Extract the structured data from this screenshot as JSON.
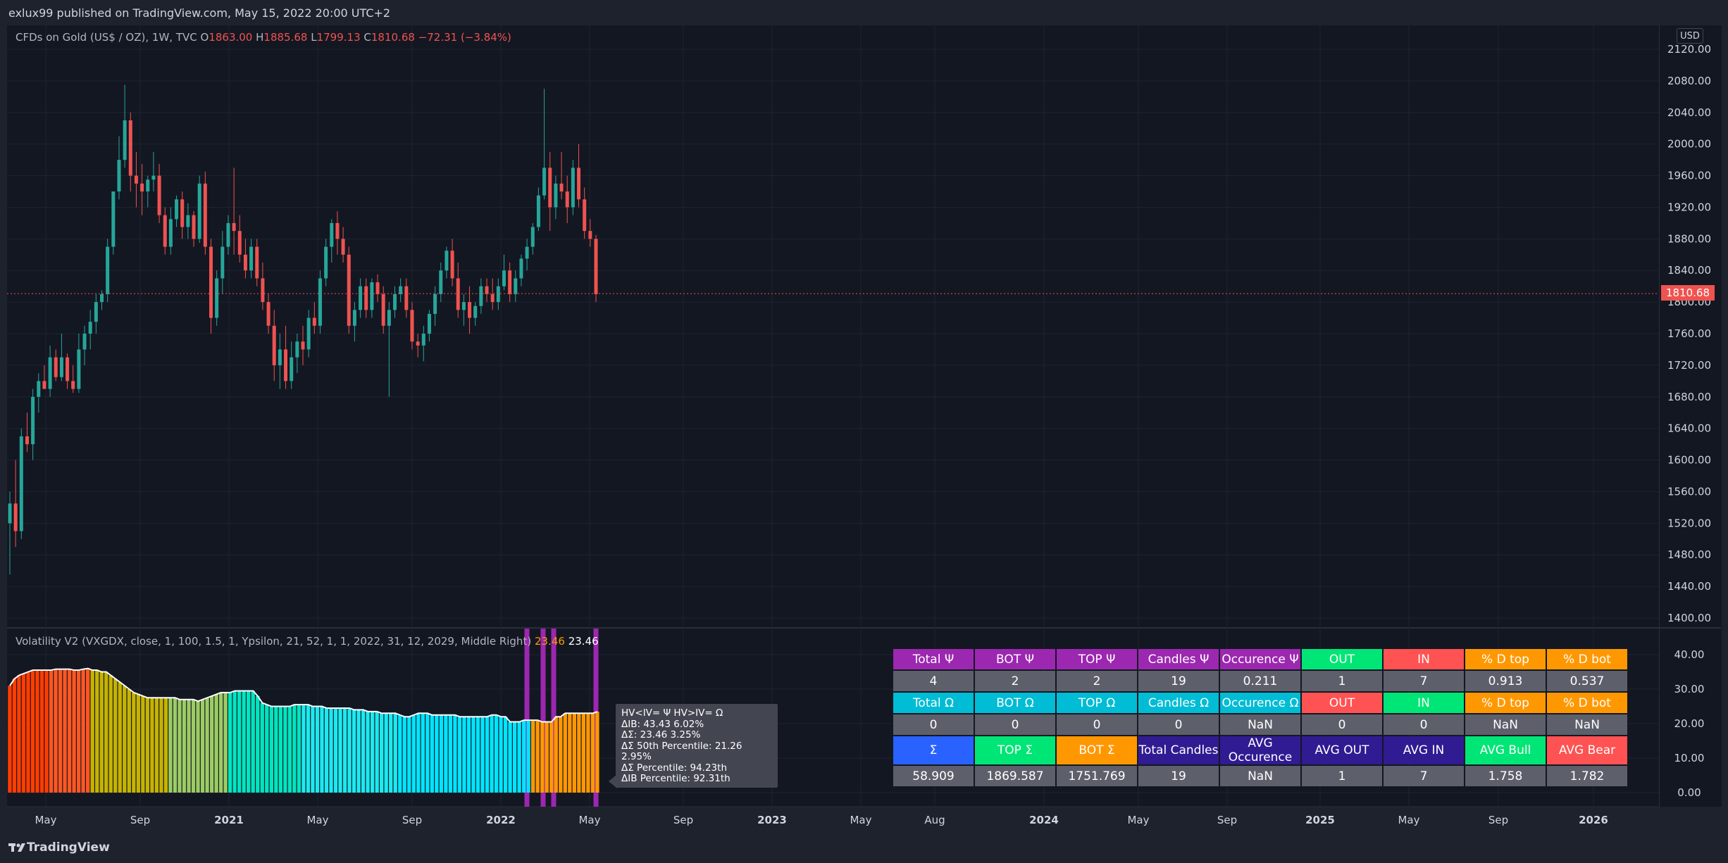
{
  "header": {
    "publish_text": "exlux99 published on TradingView.com, May 15, 2022 20:00 UTC+2"
  },
  "main_legend": {
    "symbol": "CFDs on Gold (US$ / OZ), 1W, TVC",
    "o_label": "O",
    "o_value": "1863.00",
    "h_label": "H",
    "h_value": "1885.68",
    "l_label": "L",
    "l_value": "1799.13",
    "c_label": "C",
    "c_value": "1810.68",
    "change": "−72.31 (−3.84%)"
  },
  "indicator_legend": {
    "name": "Volatility V2 (VXGDX, close, 1, 100, 1.5, 1, Ypsilon, 21, 52, 1, 1, 2022, 31, 12, 2029, Middle Right)",
    "value1": "23.46",
    "value2": "23.46"
  },
  "price_axis": {
    "currency": "USD",
    "last_price": "1810.68",
    "ticks": [
      "2120.00",
      "2080.00",
      "2040.00",
      "2000.00",
      "1960.00",
      "1920.00",
      "1880.00",
      "1840.00",
      "1800.00",
      "1760.00",
      "1720.00",
      "1680.00",
      "1640.00",
      "1600.00",
      "1560.00",
      "1520.00",
      "1480.00",
      "1440.00",
      "1400.00"
    ]
  },
  "indicator_axis": {
    "ticks": [
      "40.00",
      "30.00",
      "20.00",
      "10.00",
      "0.00"
    ]
  },
  "time_axis": {
    "labels": [
      "May",
      "Sep",
      "2021",
      "May",
      "Sep",
      "2022",
      "May",
      "Sep",
      "2023",
      "May",
      "Aug",
      "2024",
      "May",
      "Sep",
      "2025",
      "May",
      "Sep",
      "2026"
    ]
  },
  "tooltip": {
    "lines": [
      "HV<IV= Ψ  HV>IV= Ω",
      "ΔIB: 43.43  6.02%",
      "ΔΣ: 23.46  3.25%",
      "ΔΣ 50th Percentile: 21.26  2.95%",
      "ΔΣ Percentile: 94.23th",
      "ΔIB Percentile: 92.31th"
    ]
  },
  "stats_table": {
    "rows": [
      [
        {
          "t": "Total Ψ",
          "c": "#9c27b0"
        },
        {
          "t": "BOT Ψ",
          "c": "#9c27b0"
        },
        {
          "t": "TOP Ψ",
          "c": "#9c27b0"
        },
        {
          "t": "Candles Ψ",
          "c": "#9c27b0"
        },
        {
          "t": "Occurence Ψ",
          "c": "#9c27b0"
        },
        {
          "t": "OUT",
          "c": "#00e676"
        },
        {
          "t": "IN",
          "c": "#ff5252"
        },
        {
          "t": "% D top",
          "c": "#ff9800"
        },
        {
          "t": "% D bot",
          "c": "#ff9800"
        }
      ],
      [
        {
          "t": "4",
          "c": "#5d606b"
        },
        {
          "t": "2",
          "c": "#5d606b"
        },
        {
          "t": "2",
          "c": "#5d606b"
        },
        {
          "t": "19",
          "c": "#5d606b"
        },
        {
          "t": "0.211",
          "c": "#5d606b"
        },
        {
          "t": "1",
          "c": "#5d606b"
        },
        {
          "t": "7",
          "c": "#5d606b"
        },
        {
          "t": "0.913",
          "c": "#5d606b"
        },
        {
          "t": "0.537",
          "c": "#5d606b"
        }
      ],
      [
        {
          "t": "Total Ω",
          "c": "#00bcd4"
        },
        {
          "t": "BOT Ω",
          "c": "#00bcd4"
        },
        {
          "t": "TOP Ω",
          "c": "#00bcd4"
        },
        {
          "t": "Candles Ω",
          "c": "#00bcd4"
        },
        {
          "t": "Occurence Ω",
          "c": "#00bcd4"
        },
        {
          "t": "OUT",
          "c": "#ff5252"
        },
        {
          "t": "IN",
          "c": "#00e676"
        },
        {
          "t": "% D top",
          "c": "#ff9800"
        },
        {
          "t": "% D bot",
          "c": "#ff9800"
        }
      ],
      [
        {
          "t": "0",
          "c": "#5d606b"
        },
        {
          "t": "0",
          "c": "#5d606b"
        },
        {
          "t": "0",
          "c": "#5d606b"
        },
        {
          "t": "0",
          "c": "#5d606b"
        },
        {
          "t": "NaN",
          "c": "#5d606b"
        },
        {
          "t": "0",
          "c": "#5d606b"
        },
        {
          "t": "0",
          "c": "#5d606b"
        },
        {
          "t": "NaN",
          "c": "#5d606b"
        },
        {
          "t": "NaN",
          "c": "#5d606b"
        }
      ],
      [
        {
          "t": "Σ",
          "c": "#2962ff"
        },
        {
          "t": "TOP Σ",
          "c": "#00e676"
        },
        {
          "t": "BOT Σ",
          "c": "#ff9800"
        },
        {
          "t": "Total Candles",
          "c": "#311b92"
        },
        {
          "t": "AVG Occurence",
          "c": "#311b92"
        },
        {
          "t": "AVG OUT",
          "c": "#311b92"
        },
        {
          "t": "AVG IN",
          "c": "#311b92"
        },
        {
          "t": "AVG Bull",
          "c": "#00e676"
        },
        {
          "t": "AVG Bear",
          "c": "#ff5252"
        }
      ],
      [
        {
          "t": "58.909",
          "c": "#5d606b"
        },
        {
          "t": "1869.587",
          "c": "#5d606b"
        },
        {
          "t": "1751.769",
          "c": "#5d606b"
        },
        {
          "t": "19",
          "c": "#5d606b"
        },
        {
          "t": "NaN",
          "c": "#5d606b"
        },
        {
          "t": "1",
          "c": "#5d606b"
        },
        {
          "t": "7",
          "c": "#5d606b"
        },
        {
          "t": "1.758",
          "c": "#5d606b"
        },
        {
          "t": "1.782",
          "c": "#5d606b"
        }
      ]
    ]
  },
  "footer": {
    "brand": "TradingView",
    "logo": "tradingview-logo-icon"
  },
  "chart_data": [
    {
      "type": "candlestick",
      "title": "CFDs on Gold (US$ / OZ), 1W, TVC",
      "ylim": [
        1400,
        2130
      ],
      "x_range": [
        "2020-03",
        "2026-06"
      ],
      "last_price": 1810.68,
      "colors": {
        "up": "#26a69a",
        "down": "#ef5350"
      },
      "ohlc": [
        [
          1520,
          1560,
          1455,
          1545
        ],
        [
          1545,
          1600,
          1490,
          1510
        ],
        [
          1510,
          1640,
          1500,
          1630
        ],
        [
          1630,
          1660,
          1610,
          1620
        ],
        [
          1620,
          1690,
          1600,
          1680
        ],
        [
          1680,
          1710,
          1660,
          1700
        ],
        [
          1700,
          1720,
          1690,
          1690
        ],
        [
          1690,
          1745,
          1680,
          1730
        ],
        [
          1730,
          1740,
          1700,
          1705
        ],
        [
          1705,
          1760,
          1700,
          1730
        ],
        [
          1730,
          1735,
          1690,
          1700
        ],
        [
          1700,
          1720,
          1685,
          1690
        ],
        [
          1690,
          1760,
          1685,
          1740
        ],
        [
          1740,
          1770,
          1720,
          1760
        ],
        [
          1760,
          1790,
          1740,
          1775
        ],
        [
          1775,
          1810,
          1760,
          1800
        ],
        [
          1800,
          1815,
          1790,
          1810
        ],
        [
          1810,
          1880,
          1800,
          1870
        ],
        [
          1870,
          1940,
          1860,
          1940
        ],
        [
          1940,
          2010,
          1930,
          1980
        ],
        [
          1980,
          2075,
          1970,
          2030
        ],
        [
          2030,
          2040,
          1940,
          1960
        ],
        [
          1960,
          1990,
          1920,
          1950
        ],
        [
          1950,
          1975,
          1910,
          1940
        ],
        [
          1940,
          1960,
          1920,
          1955
        ],
        [
          1955,
          1990,
          1940,
          1960
        ],
        [
          1960,
          1975,
          1900,
          1910
        ],
        [
          1910,
          1920,
          1860,
          1870
        ],
        [
          1870,
          1920,
          1860,
          1905
        ],
        [
          1905,
          1935,
          1895,
          1930
        ],
        [
          1930,
          1940,
          1880,
          1895
        ],
        [
          1895,
          1925,
          1880,
          1910
        ],
        [
          1910,
          1915,
          1870,
          1880
        ],
        [
          1880,
          1960,
          1875,
          1950
        ],
        [
          1950,
          1965,
          1860,
          1870
        ],
        [
          1870,
          1880,
          1760,
          1780
        ],
        [
          1780,
          1840,
          1770,
          1830
        ],
        [
          1830,
          1890,
          1810,
          1870
        ],
        [
          1870,
          1910,
          1860,
          1900
        ],
        [
          1900,
          1970,
          1860,
          1890
        ],
        [
          1890,
          1910,
          1850,
          1860
        ],
        [
          1860,
          1880,
          1830,
          1840
        ],
        [
          1840,
          1880,
          1830,
          1870
        ],
        [
          1870,
          1880,
          1820,
          1830
        ],
        [
          1830,
          1850,
          1790,
          1800
        ],
        [
          1800,
          1810,
          1760,
          1770
        ],
        [
          1770,
          1790,
          1700,
          1720
        ],
        [
          1720,
          1760,
          1690,
          1740
        ],
        [
          1740,
          1770,
          1690,
          1700
        ],
        [
          1700,
          1750,
          1690,
          1730
        ],
        [
          1730,
          1760,
          1710,
          1750
        ],
        [
          1750,
          1770,
          1720,
          1740
        ],
        [
          1740,
          1790,
          1730,
          1780
        ],
        [
          1780,
          1800,
          1760,
          1770
        ],
        [
          1770,
          1840,
          1760,
          1830
        ],
        [
          1830,
          1880,
          1820,
          1870
        ],
        [
          1870,
          1905,
          1850,
          1900
        ],
        [
          1900,
          1915,
          1860,
          1880
        ],
        [
          1880,
          1895,
          1850,
          1860
        ],
        [
          1860,
          1870,
          1760,
          1770
        ],
        [
          1770,
          1800,
          1750,
          1790
        ],
        [
          1790,
          1830,
          1780,
          1820
        ],
        [
          1820,
          1830,
          1780,
          1790
        ],
        [
          1790,
          1830,
          1780,
          1825
        ],
        [
          1825,
          1835,
          1800,
          1810
        ],
        [
          1810,
          1820,
          1760,
          1770
        ],
        [
          1770,
          1800,
          1680,
          1790
        ],
        [
          1790,
          1820,
          1780,
          1810
        ],
        [
          1810,
          1830,
          1800,
          1820
        ],
        [
          1820,
          1830,
          1780,
          1790
        ],
        [
          1790,
          1800,
          1740,
          1750
        ],
        [
          1750,
          1760,
          1730,
          1745
        ],
        [
          1745,
          1770,
          1725,
          1760
        ],
        [
          1760,
          1790,
          1750,
          1785
        ],
        [
          1785,
          1820,
          1770,
          1810
        ],
        [
          1810,
          1850,
          1800,
          1840
        ],
        [
          1840,
          1870,
          1830,
          1865
        ],
        [
          1865,
          1880,
          1820,
          1830
        ],
        [
          1830,
          1850,
          1780,
          1790
        ],
        [
          1790,
          1810,
          1770,
          1800
        ],
        [
          1800,
          1820,
          1760,
          1780
        ],
        [
          1780,
          1800,
          1770,
          1795
        ],
        [
          1795,
          1830,
          1785,
          1820
        ],
        [
          1820,
          1830,
          1800,
          1810
        ],
        [
          1810,
          1830,
          1790,
          1800
        ],
        [
          1800,
          1830,
          1790,
          1820
        ],
        [
          1820,
          1860,
          1815,
          1840
        ],
        [
          1840,
          1850,
          1800,
          1810
        ],
        [
          1810,
          1840,
          1800,
          1830
        ],
        [
          1830,
          1860,
          1820,
          1855
        ],
        [
          1855,
          1880,
          1840,
          1870
        ],
        [
          1870,
          1900,
          1860,
          1895
        ],
        [
          1895,
          1945,
          1890,
          1935
        ],
        [
          1935,
          2070,
          1930,
          1970
        ],
        [
          1970,
          1990,
          1890,
          1920
        ],
        [
          1920,
          1960,
          1905,
          1950
        ],
        [
          1950,
          1990,
          1930,
          1940
        ],
        [
          1940,
          1960,
          1900,
          1920
        ],
        [
          1920,
          1980,
          1910,
          1970
        ],
        [
          1970,
          2000,
          1920,
          1930
        ],
        [
          1930,
          1945,
          1880,
          1890
        ],
        [
          1890,
          1905,
          1870,
          1880
        ],
        [
          1880,
          1885,
          1800,
          1810
        ]
      ]
    },
    {
      "type": "area",
      "title": "Volatility V2 (VXGDX, close, 1, 100, 1.5, 1, Ypsilon, 21, 52, 1, 1, 2022, 31, 12, 2029, Middle Right)",
      "ylim": [
        0,
        42
      ],
      "last_value": 23.46,
      "values": [
        31,
        33,
        34,
        34.5,
        35,
        35.5,
        35.5,
        35.5,
        35.5,
        35.5,
        35.8,
        35.8,
        35.8,
        35.8,
        35.5,
        35.5,
        35.8,
        36,
        35.5,
        35.5,
        35,
        35,
        34,
        33,
        32,
        31,
        30,
        29,
        28.5,
        28,
        27.5,
        27.5,
        27.5,
        27.5,
        27.5,
        27.5,
        27.5,
        27,
        27,
        27,
        27,
        26.5,
        27,
        27.5,
        28,
        28.5,
        29,
        29,
        29,
        29.5,
        29.5,
        29.5,
        29.5,
        29.5,
        28,
        26,
        25.5,
        25,
        25,
        25,
        25,
        25,
        25.5,
        25.5,
        25.5,
        25.5,
        25,
        25,
        25,
        24.5,
        24.5,
        24.5,
        24.5,
        24.5,
        24.5,
        24,
        24,
        24,
        23.5,
        23.5,
        23.5,
        23,
        23,
        23,
        23,
        22.5,
        22,
        22,
        22.5,
        23,
        23,
        23,
        22.5,
        22.5,
        22.5,
        22.5,
        22.5,
        22.5,
        22,
        22,
        22,
        22,
        22,
        22,
        22,
        22.5,
        22.5,
        22,
        22,
        20.5,
        20.5,
        20.5,
        21,
        21,
        21,
        21,
        20.5,
        20.5,
        20.5,
        22,
        22,
        23,
        23,
        23,
        23,
        23,
        23,
        23,
        23.46
      ],
      "color_bands": [
        "#ff3d00",
        "#ff5722",
        "#c6b300",
        "#9ccc65",
        "#00e5c0",
        "#1de9f0",
        "#00e5ff",
        "#ff9800"
      ],
      "highlight_color": "#9c27b0"
    }
  ]
}
